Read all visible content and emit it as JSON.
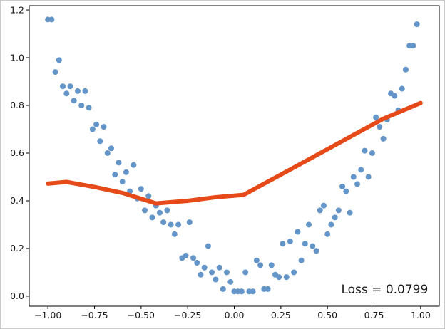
{
  "figure": {
    "background": "#ffffff",
    "spine_color": "#000000",
    "tick_color": "#000000",
    "tick_label_color": "#1a1a1a"
  },
  "chart_data": {
    "type": "scatter",
    "title": "",
    "xlabel": "",
    "ylabel": "",
    "grid": false,
    "legend": "none",
    "xlim": [
      -1.1,
      1.1
    ],
    "ylim": [
      -0.042,
      1.218
    ],
    "x_ticks": [
      -1.0,
      -0.75,
      -0.5,
      -0.25,
      0.0,
      0.25,
      0.5,
      0.75,
      1.0
    ],
    "x_tick_labels": [
      "−1.00",
      "−0.75",
      "−0.50",
      "−0.25",
      "0.00",
      "0.25",
      "0.50",
      "0.75",
      "1.00"
    ],
    "y_ticks": [
      0.0,
      0.2,
      0.4,
      0.6,
      0.8,
      1.0,
      1.2
    ],
    "y_tick_labels": [
      "0.0",
      "0.2",
      "0.4",
      "0.6",
      "0.8",
      "1.0",
      "1.2"
    ],
    "series": [
      {
        "name": "data-points",
        "type": "scatter",
        "color": "#6495c8",
        "marker_radius": 4,
        "points": [
          [
            -1.0,
            1.16
          ],
          [
            -0.98,
            1.16
          ],
          [
            -0.96,
            0.94
          ],
          [
            -0.94,
            0.99
          ],
          [
            -0.92,
            0.88
          ],
          [
            -0.9,
            0.85
          ],
          [
            -0.88,
            0.88
          ],
          [
            -0.86,
            0.82
          ],
          [
            -0.84,
            0.86
          ],
          [
            -0.82,
            0.8
          ],
          [
            -0.8,
            0.86
          ],
          [
            -0.78,
            0.79
          ],
          [
            -0.76,
            0.7
          ],
          [
            -0.74,
            0.72
          ],
          [
            -0.72,
            0.65
          ],
          [
            -0.7,
            0.71
          ],
          [
            -0.68,
            0.6
          ],
          [
            -0.66,
            0.62
          ],
          [
            -0.64,
            0.51
          ],
          [
            -0.62,
            0.56
          ],
          [
            -0.6,
            0.48
          ],
          [
            -0.58,
            0.52
          ],
          [
            -0.56,
            0.44
          ],
          [
            -0.54,
            0.55
          ],
          [
            -0.52,
            0.41
          ],
          [
            -0.5,
            0.45
          ],
          [
            -0.48,
            0.36
          ],
          [
            -0.46,
            0.42
          ],
          [
            -0.44,
            0.33
          ],
          [
            -0.42,
            0.38
          ],
          [
            -0.4,
            0.35
          ],
          [
            -0.38,
            0.31
          ],
          [
            -0.36,
            0.36
          ],
          [
            -0.34,
            0.3
          ],
          [
            -0.32,
            0.26
          ],
          [
            -0.3,
            0.3
          ],
          [
            -0.28,
            0.16
          ],
          [
            -0.26,
            0.17
          ],
          [
            -0.24,
            0.31
          ],
          [
            -0.22,
            0.16
          ],
          [
            -0.2,
            0.14
          ],
          [
            -0.18,
            0.09
          ],
          [
            -0.16,
            0.12
          ],
          [
            -0.14,
            0.21
          ],
          [
            -0.12,
            0.1
          ],
          [
            -0.1,
            0.07
          ],
          [
            -0.08,
            0.12
          ],
          [
            -0.06,
            0.03
          ],
          [
            -0.04,
            0.1
          ],
          [
            -0.02,
            0.06
          ],
          [
            0.0,
            0.02
          ],
          [
            0.02,
            0.02
          ],
          [
            0.04,
            0.02
          ],
          [
            0.06,
            0.1
          ],
          [
            0.08,
            0.02
          ],
          [
            0.1,
            0.02
          ],
          [
            0.12,
            0.15
          ],
          [
            0.14,
            0.13
          ],
          [
            0.16,
            0.03
          ],
          [
            0.18,
            0.03
          ],
          [
            0.2,
            0.13
          ],
          [
            0.22,
            0.09
          ],
          [
            0.24,
            0.08
          ],
          [
            0.26,
            0.22
          ],
          [
            0.28,
            0.08
          ],
          [
            0.3,
            0.23
          ],
          [
            0.32,
            0.1
          ],
          [
            0.34,
            0.27
          ],
          [
            0.36,
            0.15
          ],
          [
            0.38,
            0.22
          ],
          [
            0.4,
            0.3
          ],
          [
            0.42,
            0.21
          ],
          [
            0.44,
            0.19
          ],
          [
            0.46,
            0.36
          ],
          [
            0.48,
            0.38
          ],
          [
            0.5,
            0.26
          ],
          [
            0.52,
            0.3
          ],
          [
            0.54,
            0.33
          ],
          [
            0.56,
            0.36
          ],
          [
            0.58,
            0.46
          ],
          [
            0.6,
            0.44
          ],
          [
            0.62,
            0.35
          ],
          [
            0.64,
            0.5
          ],
          [
            0.66,
            0.47
          ],
          [
            0.68,
            0.53
          ],
          [
            0.7,
            0.61
          ],
          [
            0.72,
            0.5
          ],
          [
            0.74,
            0.6
          ],
          [
            0.76,
            0.75
          ],
          [
            0.78,
            0.71
          ],
          [
            0.8,
            0.66
          ],
          [
            0.82,
            0.74
          ],
          [
            0.84,
            0.85
          ],
          [
            0.86,
            0.84
          ],
          [
            0.88,
            0.78
          ],
          [
            0.9,
            0.87
          ],
          [
            0.92,
            0.95
          ],
          [
            0.94,
            1.05
          ],
          [
            0.96,
            1.05
          ],
          [
            0.98,
            1.14
          ]
        ]
      },
      {
        "name": "model-fit",
        "type": "line",
        "color": "#e54a18",
        "line_width": 6,
        "points": [
          [
            -1.0,
            0.472
          ],
          [
            -0.9,
            0.479
          ],
          [
            -0.75,
            0.458
          ],
          [
            -0.6,
            0.433
          ],
          [
            -0.42,
            0.389
          ],
          [
            -0.25,
            0.4
          ],
          [
            -0.1,
            0.415
          ],
          [
            0.05,
            0.425
          ],
          [
            0.3,
            0.531
          ],
          [
            0.6,
            0.659
          ],
          [
            0.8,
            0.744
          ],
          [
            1.0,
            0.81
          ]
        ]
      }
    ],
    "annotations": [
      {
        "name": "loss-annotation",
        "text": "Loss = 0.0799",
        "x": 1.04,
        "y": 0.012,
        "anchor": "end",
        "color": "#a5432e",
        "font_size": 17
      }
    ]
  }
}
